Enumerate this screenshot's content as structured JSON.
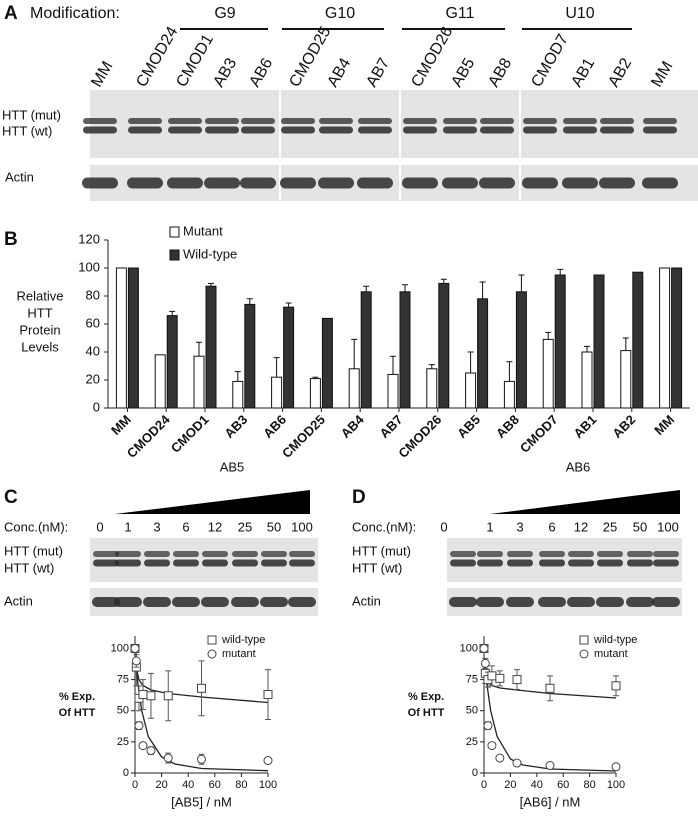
{
  "panel_a": {
    "letter": "A",
    "modification_label": "Modification:",
    "groups": [
      "G9",
      "G10",
      "G11",
      "U10"
    ],
    "lanes": [
      "MM",
      "CMOD24",
      "CMOD1",
      "AB3",
      "AB6",
      "CMOD25",
      "AB4",
      "AB7",
      "CMOD26",
      "AB5",
      "AB8",
      "CMOD7",
      "AB1",
      "AB2",
      "MM"
    ],
    "row_labels": [
      "HTT (mut)",
      "HTT (wt)",
      "Actin"
    ]
  },
  "panel_b": {
    "letter": "B"
  },
  "panel_c": {
    "letter": "C",
    "compound": "AB5",
    "conc_label": "Conc.(nM):",
    "concentrations": [
      0,
      1,
      3,
      6,
      12,
      25,
      50,
      100
    ],
    "row_labels": [
      "HTT (mut)",
      "HTT (wt)",
      "Actin"
    ]
  },
  "panel_d": {
    "letter": "D",
    "compound": "AB6",
    "conc_label": "Conc.(nM):",
    "concentrations": [
      0,
      1,
      3,
      6,
      12,
      25,
      50,
      100
    ],
    "row_labels": [
      "HTT (mut)",
      "HTT (wt)",
      "Actin"
    ]
  },
  "chart_data": [
    {
      "type": "bar",
      "ylabel": [
        "Relative",
        "HTT",
        "Protein",
        "Levels"
      ],
      "categories": [
        "MM",
        "CMOD24",
        "CMOD1",
        "AB3",
        "AB6",
        "CMOD25",
        "AB4",
        "AB7",
        "CMOD26",
        "AB5",
        "AB8",
        "CMOD7",
        "AB1",
        "AB2",
        "MM"
      ],
      "series": [
        {
          "name": "Mutant",
          "color": "#ffffff",
          "values": [
            100,
            38,
            37,
            19,
            22,
            21,
            28,
            24,
            28,
            25,
            19,
            49,
            40,
            41,
            100
          ],
          "errors": [
            0,
            0,
            10,
            7,
            14,
            1,
            21,
            13,
            3,
            15,
            14,
            5,
            4,
            9,
            0
          ]
        },
        {
          "name": "Wild-type",
          "color": "#333333",
          "values": [
            100,
            66,
            87,
            74,
            72,
            64,
            83,
            83,
            89,
            78,
            83,
            95,
            95,
            97,
            100
          ],
          "errors": [
            0,
            3,
            2,
            4,
            3,
            0,
            4,
            5,
            3,
            12,
            12,
            4,
            0,
            0,
            0
          ]
        }
      ],
      "ylim": [
        0,
        120
      ],
      "yticks": [
        0,
        20,
        40,
        60,
        80,
        100,
        120
      ]
    },
    {
      "type": "scatter",
      "xlabel": "[AB5] / nM",
      "ylabel": [
        "% Exp.",
        "Of HTT"
      ],
      "x": [
        0,
        1,
        3,
        6,
        12,
        25,
        50,
        100
      ],
      "series": [
        {
          "name": "wild-type",
          "marker": "square",
          "color": "#ffffff",
          "values": [
            100,
            85,
            60,
            63,
            62,
            62,
            68,
            63
          ],
          "errors": [
            0,
            15,
            10,
            12,
            18,
            20,
            22,
            20
          ]
        },
        {
          "name": "mutant",
          "marker": "circle",
          "color": "#ffffff",
          "values": [
            100,
            90,
            38,
            22,
            18,
            12,
            11,
            10
          ],
          "errors": [
            0,
            5,
            3,
            2,
            3,
            4,
            4,
            2
          ]
        }
      ],
      "xlim": [
        0,
        100
      ],
      "xticks": [
        0,
        20,
        40,
        60,
        80,
        100
      ],
      "ylim": [
        0,
        110
      ],
      "yticks": [
        0,
        25,
        50,
        75,
        100
      ]
    },
    {
      "type": "scatter",
      "xlabel": "[AB6] / nM",
      "ylabel": [
        "% Exp.",
        "Of HTT"
      ],
      "x": [
        0,
        1,
        3,
        6,
        12,
        25,
        50,
        100
      ],
      "series": [
        {
          "name": "wild-type",
          "marker": "square",
          "color": "#ffffff",
          "values": [
            100,
            80,
            75,
            78,
            76,
            75,
            68,
            70
          ],
          "errors": [
            0,
            8,
            6,
            8,
            6,
            8,
            10,
            8
          ]
        },
        {
          "name": "mutant",
          "marker": "circle",
          "color": "#ffffff",
          "values": [
            100,
            88,
            38,
            22,
            12,
            8,
            6,
            5
          ],
          "errors": [
            0,
            4,
            3,
            2,
            2,
            2,
            1,
            1
          ]
        }
      ],
      "xlim": [
        0,
        100
      ],
      "xticks": [
        0,
        20,
        40,
        60,
        80,
        100
      ],
      "ylim": [
        0,
        110
      ],
      "yticks": [
        0,
        25,
        50,
        75,
        100
      ]
    }
  ]
}
